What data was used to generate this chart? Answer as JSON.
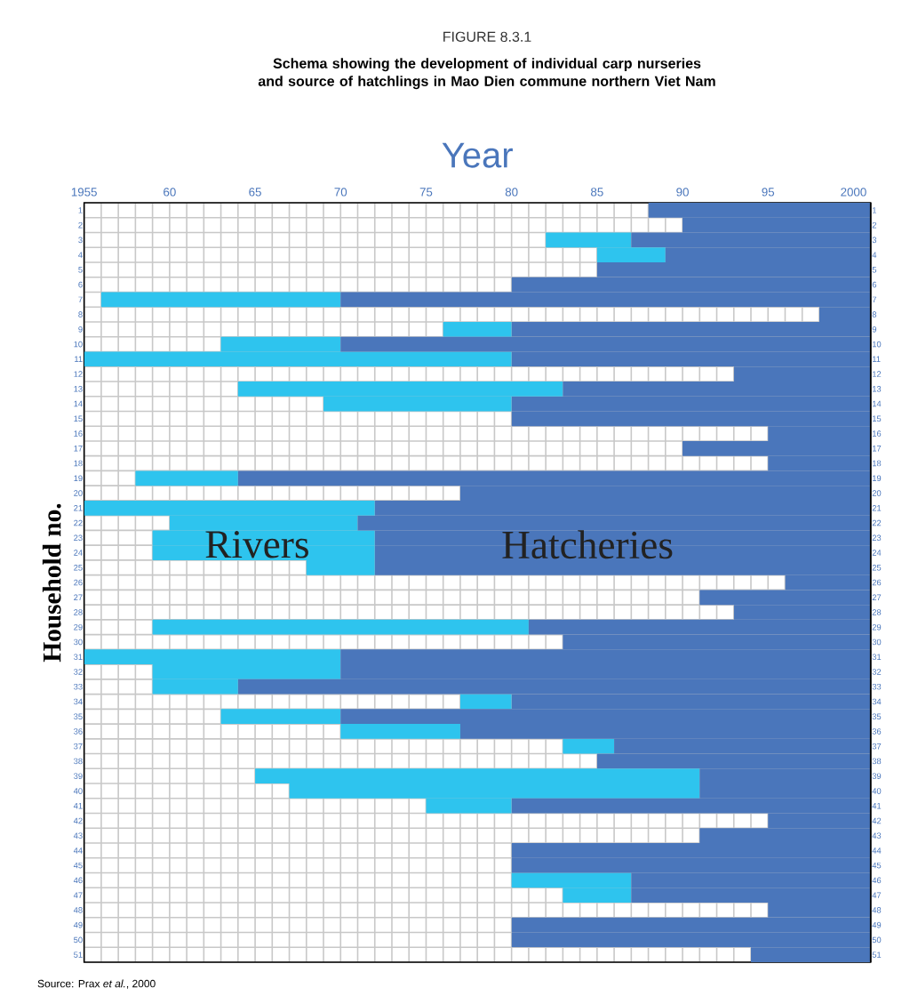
{
  "chart_data": {
    "type": "bar",
    "orientation": "horizontal",
    "title": "FIGURE 8.3.1",
    "subtitle": "Schema showing the development of individual carp nurseries and source of hatchlings in Mao Dien commune northern Viet Nam",
    "xlabel": "Year",
    "ylabel": "Household no.",
    "annotations": [
      "Source: Prax *et al.*, 2000"
    ],
    "categories": [
      "1",
      "2",
      "3",
      "4",
      "5",
      "6",
      "7",
      "8",
      "9",
      "10",
      "11",
      "12",
      "13",
      "14",
      "15",
      "16",
      "17",
      "18",
      "19",
      "20",
      "21",
      "22",
      "23",
      "24",
      "25",
      "26",
      "27",
      "28",
      "29",
      "30",
      "31",
      "32",
      "33",
      "34",
      "35",
      "36",
      "37",
      "38",
      "39",
      "40",
      "41",
      "42",
      "43",
      "44",
      "45",
      "46",
      "47",
      "48",
      "49",
      "50",
      "51"
    ],
    "xlim": [
      1955,
      2001
    ],
    "xticks": [
      1955,
      {
        "value": 1960,
        "label": "60"
      },
      {
        "value": 1965,
        "label": "65"
      },
      {
        "value": 1970,
        "label": "70"
      },
      {
        "value": 1975,
        "label": "75"
      },
      {
        "value": 1980,
        "label": "80"
      },
      {
        "value": 1985,
        "label": "85"
      },
      {
        "value": 1990,
        "label": "90"
      },
      {
        "value": 1995,
        "label": "95"
      },
      2000
    ],
    "grid": true,
    "series": [
      {
        "name": "Rivers",
        "color": "#2ec4ee",
        "base": [
          null,
          null,
          1982,
          1985,
          null,
          null,
          1956,
          null,
          1976,
          1963,
          1955,
          null,
          1964,
          1969,
          null,
          null,
          null,
          null,
          1958,
          null,
          1955,
          1960,
          1959,
          1959,
          1968,
          null,
          null,
          null,
          1959,
          null,
          1955,
          1959,
          1959,
          1977,
          1963,
          1970,
          1983,
          null,
          1965,
          1967,
          1975,
          null,
          null,
          null,
          null,
          1980,
          1983,
          null,
          null,
          null,
          null
        ],
        "values": [
          null,
          null,
          5,
          4,
          null,
          null,
          14,
          null,
          4,
          7,
          25,
          null,
          19,
          11,
          null,
          null,
          null,
          null,
          6,
          null,
          17,
          11,
          13,
          13,
          4,
          null,
          null,
          null,
          22,
          null,
          15,
          11,
          5,
          3,
          7,
          7,
          3,
          null,
          26,
          24,
          5,
          null,
          null,
          null,
          null,
          7,
          4,
          null,
          null,
          null,
          null
        ]
      },
      {
        "name": "Hatcheries",
        "color": "#4a76bb",
        "base": [
          1988,
          1990,
          1987,
          1989,
          1985,
          1980,
          1970,
          1998,
          1980,
          1970,
          1980,
          1993,
          1983,
          1980,
          1980,
          1995,
          1990,
          1995,
          1964,
          1977,
          1972,
          1971,
          1972,
          1972,
          1972,
          1996,
          1991,
          1993,
          1981,
          1983,
          1970,
          1970,
          1964,
          1980,
          1970,
          1977,
          1986,
          1985,
          1991,
          1991,
          1980,
          1995,
          1991,
          1980,
          1980,
          1987,
          1987,
          1995,
          1980,
          1980,
          1994
        ],
        "values": [
          13,
          11,
          14,
          12,
          16,
          21,
          31,
          3,
          21,
          31,
          21,
          8,
          18,
          21,
          21,
          6,
          11,
          6,
          37,
          24,
          29,
          30,
          29,
          29,
          29,
          5,
          10,
          8,
          20,
          18,
          31,
          31,
          37,
          21,
          31,
          24,
          15,
          16,
          10,
          10,
          21,
          6,
          10,
          21,
          21,
          14,
          14,
          6,
          21,
          21,
          7
        ]
      }
    ]
  }
}
